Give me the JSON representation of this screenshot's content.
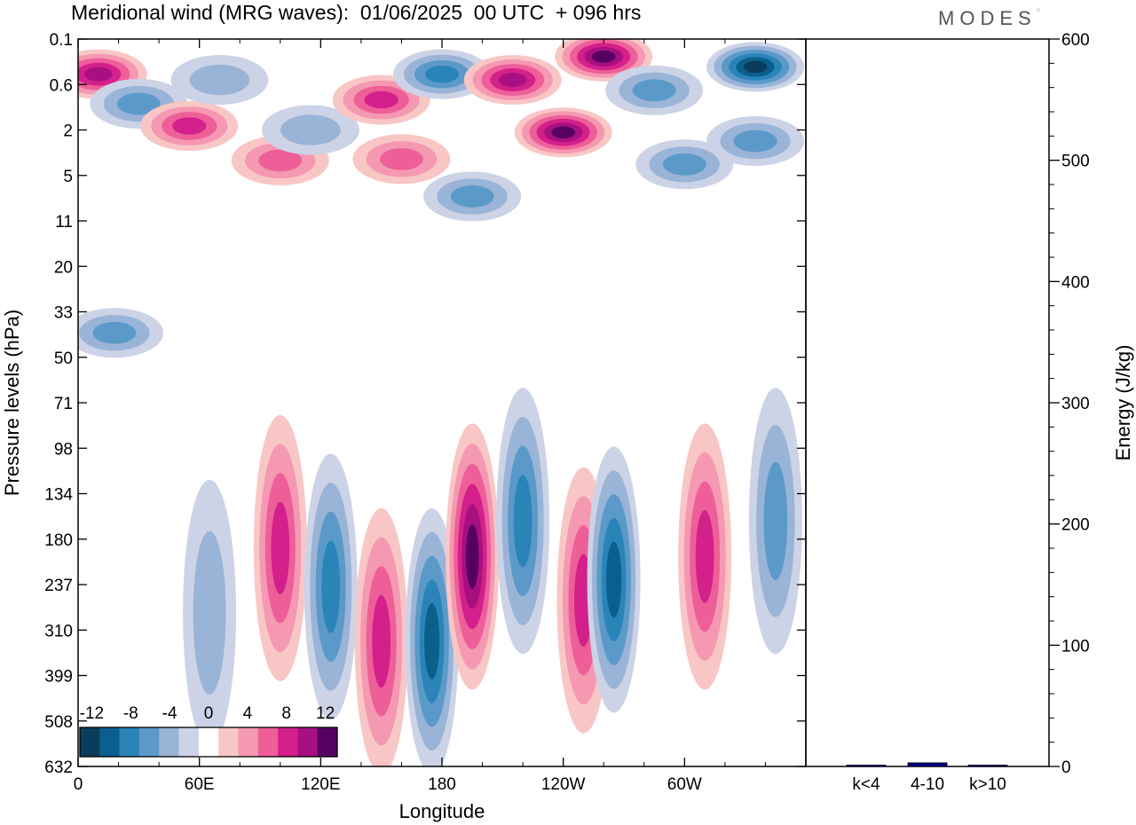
{
  "header": {
    "title": "Meridional wind (MRG waves):  01/06/2025  00 UTC  + 096 hrs",
    "brand": "MODES"
  },
  "colors": {
    "neg": [
      "#0a3d5c",
      "#0b5f8e",
      "#2a84b8",
      "#5b9ac8",
      "#9ab4d8",
      "#cdd3e6"
    ],
    "pos": [
      "#f9c6c6",
      "#f598b2",
      "#ee5f99",
      "#d3208a",
      "#a80f80",
      "#560062"
    ],
    "energy_bar": "#000080"
  },
  "chart_data": [
    {
      "type": "heatmap",
      "title": "Meridional wind (MRG waves):  01/06/2025  00 UTC  + 096 hrs",
      "xlabel": "Longitude",
      "ylabel": "Pressure levels (hPa)",
      "x_ticks": [
        "0",
        "60E",
        "120E",
        "180",
        "120W",
        "60W"
      ],
      "x_tick_values": [
        0,
        60,
        120,
        180,
        240,
        300
      ],
      "xlim": [
        0,
        360
      ],
      "y_ticks": [
        "0.1",
        "0.6",
        "2",
        "5",
        "11",
        "20",
        "33",
        "50",
        "71",
        "98",
        "134",
        "180",
        "237",
        "310",
        "399",
        "508",
        "632"
      ],
      "colorbar": {
        "levels": [
          -12,
          -10,
          -8,
          -6,
          -4,
          -2,
          0,
          2,
          4,
          6,
          8,
          10,
          12
        ],
        "labels": [
          "-12",
          "-8",
          "-4",
          "0",
          "4",
          "8",
          "12"
        ]
      },
      "features": [
        {
          "lon": 10,
          "lev": 0.4,
          "value": 9
        },
        {
          "lon": 30,
          "lev": 1.0,
          "value": -5
        },
        {
          "lon": 55,
          "lev": 1.8,
          "value": 7
        },
        {
          "lon": 70,
          "lev": 0.5,
          "value": -3
        },
        {
          "lon": 100,
          "lev": 3.7,
          "value": 6
        },
        {
          "lon": 115,
          "lev": 2.0,
          "value": -4
        },
        {
          "lon": 150,
          "lev": 0.9,
          "value": 8
        },
        {
          "lon": 160,
          "lev": 3.6,
          "value": 5
        },
        {
          "lon": 180,
          "lev": 0.4,
          "value": -8
        },
        {
          "lon": 195,
          "lev": 7.2,
          "value": -5
        },
        {
          "lon": 215,
          "lev": 0.5,
          "value": 9
        },
        {
          "lon": 240,
          "lev": 2.1,
          "value": 11
        },
        {
          "lon": 260,
          "lev": 0.2,
          "value": 12
        },
        {
          "lon": 285,
          "lev": 0.7,
          "value": -6
        },
        {
          "lon": 300,
          "lev": 4.0,
          "value": -6
        },
        {
          "lon": 335,
          "lev": 0.3,
          "value": -14
        },
        {
          "lon": 335,
          "lev": 2.5,
          "value": -5
        },
        {
          "lon": 18,
          "lev": 40,
          "value": -5
        },
        {
          "lon": 65,
          "lev": 280,
          "value": -4
        },
        {
          "lon": 100,
          "lev": 190,
          "value": 7
        },
        {
          "lon": 125,
          "lev": 240,
          "value": -7
        },
        {
          "lon": 150,
          "lev": 330,
          "value": 8
        },
        {
          "lon": 175,
          "lev": 330,
          "value": -10
        },
        {
          "lon": 195,
          "lev": 200,
          "value": 14
        },
        {
          "lon": 220,
          "lev": 160,
          "value": -7
        },
        {
          "lon": 250,
          "lev": 260,
          "value": 7
        },
        {
          "lon": 265,
          "lev": 230,
          "value": -9
        },
        {
          "lon": 310,
          "lev": 200,
          "value": 8
        },
        {
          "lon": 345,
          "lev": 160,
          "value": -6
        }
      ]
    },
    {
      "type": "bar",
      "categories": [
        "k<4",
        "4-10",
        "k>10"
      ],
      "values": [
        0.3,
        3.0,
        0.2
      ],
      "ylabel": "Energy (J/kg)",
      "ylim": [
        0,
        600
      ],
      "y_ticks": [
        "0",
        "100",
        "200",
        "300",
        "400",
        "500",
        "600"
      ]
    }
  ]
}
